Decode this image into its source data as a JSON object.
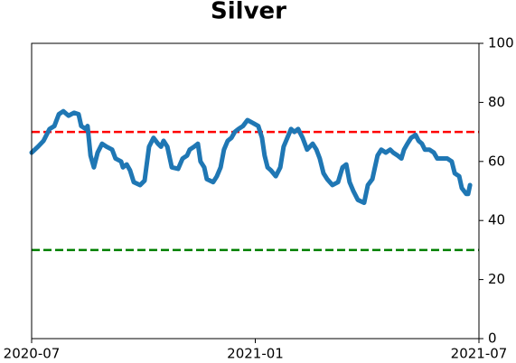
{
  "chart_data": {
    "type": "line",
    "title": "Silver",
    "x": [
      0,
      0.17,
      0.32,
      0.48,
      0.61,
      0.73,
      0.85,
      0.99,
      1.14,
      1.26,
      1.33,
      1.45,
      1.5,
      1.58,
      1.67,
      1.77,
      1.89,
      2.01,
      2.16,
      2.25,
      2.4,
      2.45,
      2.55,
      2.64,
      2.74,
      2.91,
      3.03,
      3.15,
      3.27,
      3.39,
      3.47,
      3.54,
      3.64,
      3.76,
      3.93,
      4.05,
      4.17,
      4.24,
      4.36,
      4.46,
      4.53,
      4.63,
      4.7,
      4.87,
      4.97,
      5.07,
      5.16,
      5.26,
      5.36,
      5.45,
      5.55,
      5.67,
      5.79,
      5.94,
      6.08,
      6.18,
      6.25,
      6.33,
      6.42,
      6.55,
      6.67,
      6.76,
      6.86,
      6.96,
      7.05,
      7.15,
      7.27,
      7.39,
      7.54,
      7.64,
      7.73,
      7.83,
      7.93,
      8.07,
      8.22,
      8.34,
      8.44,
      8.53,
      8.63,
      8.75,
      8.92,
      9.02,
      9.14,
      9.21,
      9.28,
      9.38,
      9.5,
      9.62,
      9.7,
      9.82,
      9.92,
      9.99,
      10.08,
      10.18,
      10.3,
      10.38,
      10.47,
      10.55,
      10.67,
      10.79,
      10.88,
      11.03,
      11.15,
      11.27,
      11.35,
      11.47,
      11.54,
      11.66,
      11.71,
      11.76
    ],
    "series": [
      {
        "color": "#1f77b4",
        "values": [
          63,
          65,
          67,
          71,
          72,
          76,
          77,
          75.5,
          76.5,
          76,
          72,
          71,
          72,
          62,
          58,
          63,
          66,
          65,
          64,
          61,
          60,
          58,
          59,
          57,
          53,
          52,
          53.5,
          65,
          68,
          66,
          65,
          67,
          65,
          58,
          57.5,
          61,
          62,
          64,
          65,
          66,
          60,
          58,
          54,
          53,
          55,
          58,
          64,
          67,
          68,
          70,
          71,
          72,
          74,
          73,
          72,
          68,
          62,
          58,
          57,
          55,
          58,
          65,
          68,
          71,
          70,
          71,
          68,
          64,
          66,
          64,
          61,
          56,
          54,
          52,
          53,
          58,
          59,
          53,
          50,
          47,
          46,
          52,
          54,
          58,
          62,
          64,
          63,
          64,
          63,
          62,
          61,
          64,
          66,
          68,
          69,
          67,
          66,
          64,
          64,
          63,
          61,
          61,
          61,
          60,
          56,
          55,
          51,
          49,
          49,
          52
        ]
      }
    ],
    "xlim": [
      0,
      12
    ],
    "xticks": [
      {
        "value": 0,
        "label": "2020-07"
      },
      {
        "value": 6,
        "label": "2021-01"
      },
      {
        "value": 12,
        "label": "2021-07"
      }
    ],
    "ylim": [
      0,
      100
    ],
    "yticks": [
      0,
      20,
      40,
      60,
      80,
      100
    ],
    "y_axis_side": "right",
    "hlines": [
      {
        "value": 70,
        "color": "#ff0000"
      },
      {
        "value": 30,
        "color": "#008000"
      }
    ]
  }
}
